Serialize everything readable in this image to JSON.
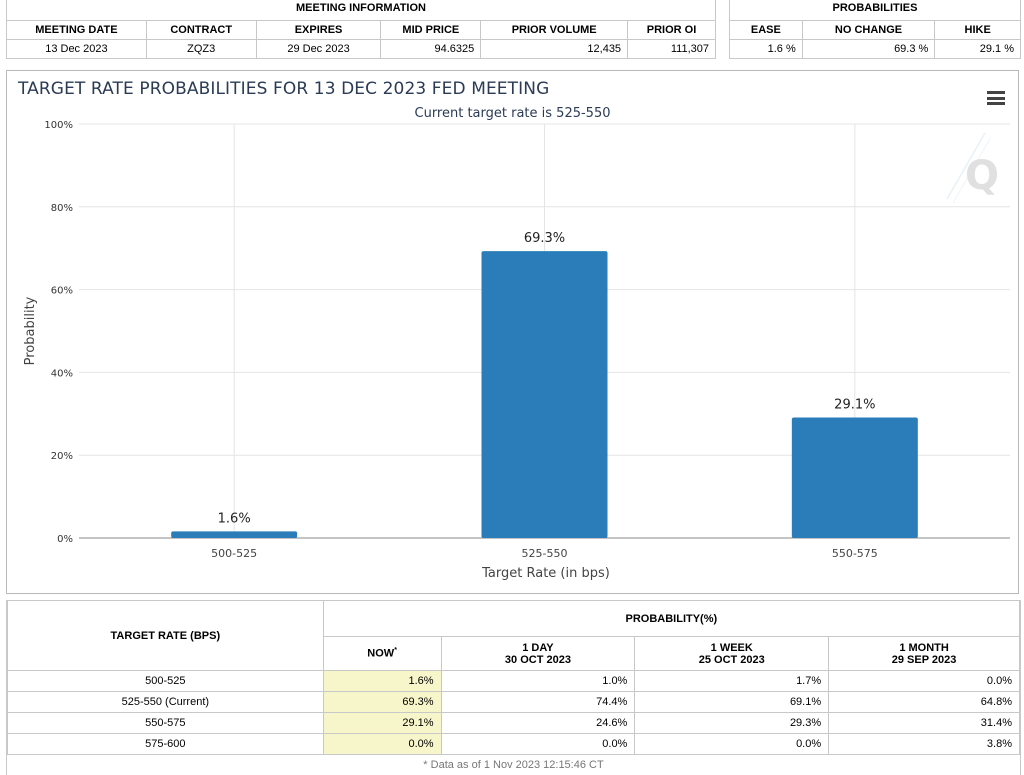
{
  "meeting_info": {
    "section_title": "MEETING INFORMATION",
    "headers": [
      "MEETING DATE",
      "CONTRACT",
      "EXPIRES",
      "MID PRICE",
      "PRIOR VOLUME",
      "PRIOR OI"
    ],
    "values": [
      "13 Dec 2023",
      "ZQZ3",
      "29 Dec 2023",
      "94.6325",
      "12,435",
      "111,307"
    ]
  },
  "probabilities": {
    "section_title": "PROBABILITIES",
    "headers": [
      "EASE",
      "NO CHANGE",
      "HIKE"
    ],
    "values": [
      "1.6 %",
      "69.3 %",
      "29.1 %"
    ]
  },
  "chart": {
    "title": "TARGET RATE PROBABILITIES FOR 13 DEC 2023 FED MEETING",
    "subtitle": "Current target rate is 525-550",
    "menu_icon": "hamburger-menu-icon",
    "watermark_icon": "q-logo-icon"
  },
  "chart_data": {
    "type": "bar",
    "title": "TARGET RATE PROBABILITIES FOR 13 DEC 2023 FED MEETING",
    "subtitle": "Current target rate is 525-550",
    "categories": [
      "500-525",
      "525-550",
      "550-575"
    ],
    "values": [
      1.6,
      69.3,
      29.1
    ],
    "data_labels": [
      "1.6%",
      "69.3%",
      "29.1%"
    ],
    "xlabel": "Target Rate (in bps)",
    "ylabel": "Probability",
    "ylim": [
      0,
      100
    ],
    "yticks": [
      "0%",
      "20%",
      "40%",
      "60%",
      "80%",
      "100%"
    ],
    "bar_color": "#2a7db8",
    "grid": true,
    "legend": "none"
  },
  "rate_table": {
    "row_header": "TARGET RATE (BPS)",
    "prob_header": "PROBABILITY(%)",
    "columns": [
      {
        "label": "NOW",
        "date": "",
        "marker": "*"
      },
      {
        "label": "1 DAY",
        "date": "30 OCT 2023",
        "marker": ""
      },
      {
        "label": "1 WEEK",
        "date": "25 OCT 2023",
        "marker": ""
      },
      {
        "label": "1 MONTH",
        "date": "29 SEP 2023",
        "marker": ""
      }
    ],
    "rows": [
      {
        "rate": "500-525",
        "values": [
          "1.6%",
          "1.0%",
          "1.7%",
          "0.0%"
        ]
      },
      {
        "rate": "525-550 (Current)",
        "values": [
          "69.3%",
          "74.4%",
          "69.1%",
          "64.8%"
        ]
      },
      {
        "rate": "550-575",
        "values": [
          "29.1%",
          "24.6%",
          "29.3%",
          "31.4%"
        ]
      },
      {
        "rate": "575-600",
        "values": [
          "0.0%",
          "0.0%",
          "0.0%",
          "3.8%"
        ]
      }
    ],
    "footnote": "* Data as of 1 Nov 2023 12:15:46 CT"
  }
}
